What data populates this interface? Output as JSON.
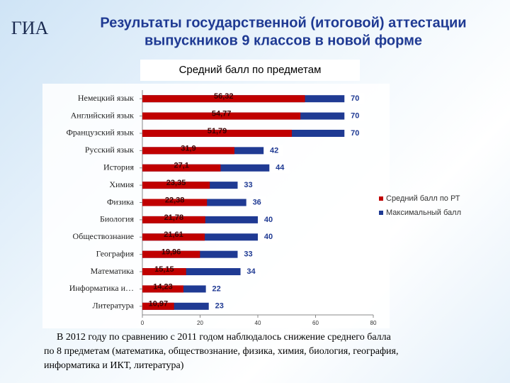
{
  "logo": "ГИА",
  "note": [
    "В 2012 году по сравнению с 2011 годом наблюдалось снижение среднего балла",
    "по 8 предметам (математика, обществознание, физика, химия, биология, география,",
    "информатика и ИКТ, литература)"
  ],
  "chart_data": {
    "type": "bar",
    "title": [
      "Результаты государственной (итоговой) аттестации",
      "выпускников  9 классов в новой форме"
    ],
    "subtitle": "Средний балл по предметам",
    "orientation": "horizontal",
    "categories": [
      "Немецкий язык",
      "Английский язык",
      "Французский язык",
      "Русский язык",
      "История",
      "Химия",
      "Физика",
      "Биология",
      "Обществознание",
      "География",
      "Математика",
      "Информатика и…",
      "Литература"
    ],
    "series": [
      {
        "name": "Максимальный балл",
        "color": "#1f3a93",
        "values": [
          70,
          70,
          70,
          42,
          44,
          33,
          36,
          40,
          40,
          33,
          34,
          22,
          23
        ]
      },
      {
        "name": "Средний балл по РТ",
        "color": "#c00000",
        "values": [
          56.32,
          54.77,
          51.79,
          31.9,
          27.1,
          23.35,
          22.38,
          21.78,
          21.61,
          19.96,
          15.15,
          14.23,
          10.97
        ],
        "value_labels": [
          "56,32",
          "54,77",
          "51,79",
          "31,9",
          "27,1",
          "23,35",
          "22,38",
          "21,78",
          "21,61",
          "19,96",
          "15,15",
          "14,23",
          "10,97"
        ]
      }
    ],
    "xlim": [
      0,
      80
    ],
    "xticks": [
      0,
      20,
      40,
      60,
      80
    ],
    "grid": false,
    "legend": "right"
  }
}
